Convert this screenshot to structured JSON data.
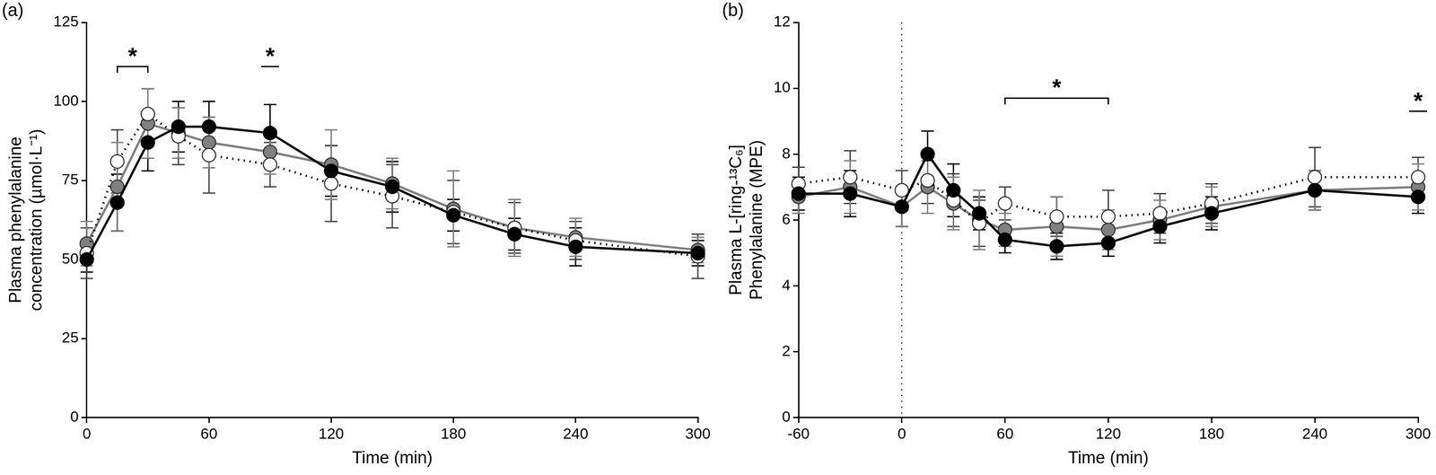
{
  "chart_data": [
    {
      "type": "line",
      "panel_label": "(a)",
      "x_label": "Time (min)",
      "y_label": [
        "Plasma phenylalanine",
        "concentration (µmol·L⁻¹)"
      ],
      "xlim": [
        0,
        300
      ],
      "xticks": [
        0,
        60,
        120,
        180,
        240,
        300
      ],
      "ylim": [
        0,
        125
      ],
      "yticks": [
        0,
        25,
        50,
        75,
        100,
        125
      ],
      "grid": false,
      "series": [
        {
          "color": "#000000",
          "marker": "circle",
          "line_style": "solid",
          "x": [
            0,
            15,
            30,
            45,
            60,
            90,
            120,
            150,
            180,
            210,
            240,
            300
          ],
          "values": [
            50,
            68,
            87,
            92,
            92,
            90,
            78,
            73,
            64,
            58,
            54,
            52
          ],
          "errors": [
            4,
            9,
            9,
            8,
            8,
            9,
            8,
            8,
            5,
            5,
            6,
            4
          ]
        },
        {
          "color": "#ffffff",
          "marker": "circle",
          "line_style": "dotted",
          "x": [
            0,
            15,
            30,
            45,
            60,
            90,
            120,
            150,
            180,
            210,
            240,
            300
          ],
          "values": [
            52,
            81,
            96,
            89,
            83,
            80,
            74,
            70,
            65,
            60,
            56,
            51
          ],
          "errors": [
            8,
            10,
            8,
            9,
            12,
            7,
            12,
            10,
            10,
            8,
            6,
            7
          ]
        },
        {
          "color": "#808080",
          "marker": "circle",
          "line_style": "solid",
          "x": [
            0,
            15,
            30,
            45,
            60,
            90,
            120,
            150,
            180,
            210,
            240,
            300
          ],
          "values": [
            55,
            73,
            93,
            90,
            87,
            84,
            80,
            74,
            66,
            60,
            57,
            53
          ],
          "errors": [
            7,
            14,
            11,
            8,
            8,
            7,
            11,
            8,
            12,
            9,
            6,
            4
          ]
        }
      ],
      "annotations": [
        {
          "text": "*",
          "x": [
            15,
            30
          ],
          "y": 111
        },
        {
          "text": "*",
          "x": 90,
          "y": 111
        }
      ]
    },
    {
      "type": "line",
      "panel_label": "(b)",
      "x_label": "Time (min)",
      "y_label": [
        "Plasma L-[ring-¹³C₆]",
        "Phenylalanine (MPE)"
      ],
      "xlim": [
        -60,
        300
      ],
      "xticks": [
        -60,
        0,
        60,
        120,
        180,
        240,
        300
      ],
      "ylim": [
        0,
        12
      ],
      "yticks": [
        0,
        2,
        4,
        6,
        8,
        10,
        12
      ],
      "grid": false,
      "reference_lines": [
        {
          "x": 0,
          "line_style": "dotted"
        }
      ],
      "series": [
        {
          "color": "#000000",
          "marker": "circle",
          "line_style": "solid",
          "x": [
            -60,
            -30,
            0,
            15,
            30,
            45,
            60,
            90,
            120,
            150,
            180,
            240,
            300
          ],
          "values": [
            6.8,
            6.8,
            6.4,
            8.0,
            6.9,
            6.2,
            5.4,
            5.2,
            5.3,
            5.8,
            6.2,
            6.9,
            6.7
          ],
          "errors": [
            0.5,
            0.7,
            0.6,
            0.7,
            0.8,
            0.5,
            0.4,
            0.4,
            0.4,
            0.5,
            0.5,
            0.6,
            0.5
          ]
        },
        {
          "color": "#ffffff",
          "marker": "circle",
          "line_style": "dotted",
          "x": [
            -60,
            -30,
            0,
            15,
            30,
            45,
            60,
            90,
            120,
            150,
            180,
            240,
            300
          ],
          "values": [
            7.1,
            7.3,
            6.9,
            7.2,
            6.6,
            5.9,
            6.5,
            6.1,
            6.1,
            6.2,
            6.5,
            7.3,
            7.3
          ],
          "errors": [
            0.5,
            0.8,
            0.6,
            0.7,
            0.8,
            0.7,
            0.5,
            0.6,
            0.8,
            0.6,
            0.6,
            0.9,
            0.6
          ]
        },
        {
          "color": "#808080",
          "marker": "circle",
          "line_style": "solid",
          "x": [
            -60,
            -30,
            0,
            15,
            30,
            45,
            60,
            90,
            120,
            150,
            180,
            240,
            300
          ],
          "values": [
            6.7,
            7.0,
            6.4,
            7.0,
            6.5,
            6.0,
            5.7,
            5.8,
            5.7,
            6.0,
            6.4,
            6.9,
            7.0
          ],
          "errors": [
            0.5,
            0.8,
            0.6,
            0.8,
            0.8,
            0.9,
            0.5,
            0.9,
            0.6,
            0.6,
            0.6,
            0.6,
            0.7
          ]
        }
      ],
      "annotations": [
        {
          "text": "*",
          "x": [
            60,
            120
          ],
          "y": 9.7
        },
        {
          "text": "*",
          "x": 300,
          "y": 9.3
        }
      ]
    }
  ]
}
